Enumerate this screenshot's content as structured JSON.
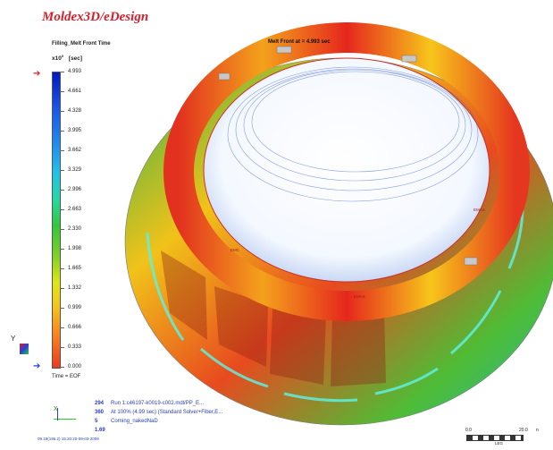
{
  "app": {
    "brand": "Moldex3D/eDesign"
  },
  "legend": {
    "title": "Filling_Melt Front Time",
    "unit": "x10",
    "unit_exp": "0",
    "unit_suffix": "[sec]",
    "ticks": [
      "4.993",
      "4.661",
      "4.328",
      "3.995",
      "3.662",
      "3.329",
      "2.996",
      "2.663",
      "2.330",
      "1.998",
      "1.665",
      "1.332",
      "0.999",
      "0.666",
      "0.333",
      "0.000"
    ],
    "time_label": "Time = EOF",
    "colors": {
      "top": "#0018c8",
      "bottom": "#ef3a20"
    }
  },
  "viewport": {
    "melt_front": "Melt Front at = 4.993 sec",
    "markers": [
      "EMC",
      "EMAX",
      "EMAX"
    ]
  },
  "run_info": [
    {
      "num": "294",
      "text": "Run 1:c46197-k0019-c002.mdl/PP_E..."
    },
    {
      "num": "360",
      "text": "At 100% (4.99 sec) (Standard Solver+Fiber,E..."
    },
    {
      "num": "5",
      "text": "Corning_nakedNaD"
    },
    {
      "num": "1.69",
      "text": ""
    }
  ],
  "footer": "09.19(196.2) 15:20:20-09-03-2009",
  "scale": {
    "start": "0.0",
    "end": "20.0",
    "unit": "n",
    "caption": "LEG"
  },
  "axes": {
    "x": "X",
    "y": "Y"
  }
}
